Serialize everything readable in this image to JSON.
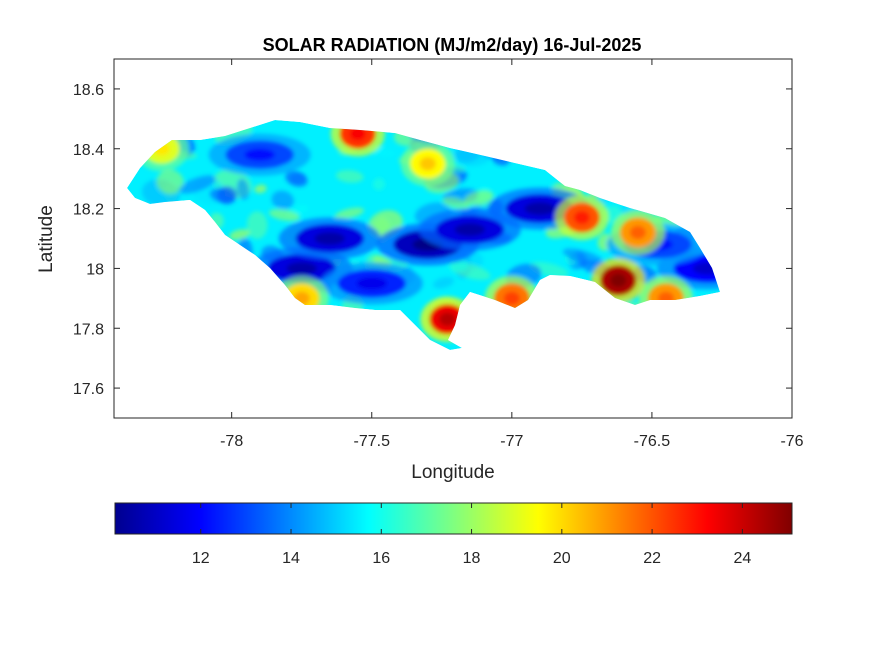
{
  "chart_data": {
    "type": "heatmap",
    "title": "SOLAR RADIATION (MJ/m2/day) 16-Jul-2025",
    "xlabel": "Longitude",
    "ylabel": "Latitude",
    "xlim": [
      -78.42,
      -76.0
    ],
    "ylim": [
      17.5,
      18.7
    ],
    "xticks": [
      -78,
      -77.5,
      -77,
      -76.5,
      -76
    ],
    "yticks": [
      17.6,
      17.8,
      18,
      18.2,
      18.4,
      18.6
    ],
    "grid": false,
    "colormap": "jet",
    "colorbar": {
      "orientation": "horizontal",
      "placement": "bottom",
      "range": [
        10.1,
        25.1
      ],
      "ticks": [
        12,
        14,
        16,
        18,
        20,
        22,
        24
      ],
      "colors": [
        "#00008f",
        "#0000ff",
        "#00ffff",
        "#ffff00",
        "#ff0000",
        "#800000"
      ]
    },
    "hotspots": [
      {
        "lon": -77.23,
        "lat": 17.83,
        "value": 23.5
      },
      {
        "lon": -76.62,
        "lat": 17.96,
        "value": 24.5
      },
      {
        "lon": -76.75,
        "lat": 18.17,
        "value": 22.0
      },
      {
        "lon": -77.55,
        "lat": 18.45,
        "value": 22.5
      },
      {
        "lon": -77.0,
        "lat": 17.9,
        "value": 21.5
      },
      {
        "lon": -76.45,
        "lat": 17.9,
        "value": 21.0
      },
      {
        "lon": -78.25,
        "lat": 18.4,
        "value": 19.0
      },
      {
        "lon": -77.3,
        "lat": 18.35,
        "value": 19.5
      },
      {
        "lon": -76.55,
        "lat": 18.12,
        "value": 21.0
      },
      {
        "lon": -77.75,
        "lat": 17.9,
        "value": 20.0
      }
    ],
    "coldspots": [
      {
        "lon": -77.3,
        "lat": 18.08,
        "value": 11.0
      },
      {
        "lon": -76.9,
        "lat": 18.2,
        "value": 11.5
      },
      {
        "lon": -77.75,
        "lat": 18.0,
        "value": 11.5
      },
      {
        "lon": -77.65,
        "lat": 18.1,
        "value": 11.5
      },
      {
        "lon": -77.15,
        "lat": 18.13,
        "value": 11.5
      },
      {
        "lon": -76.3,
        "lat": 18.0,
        "value": 12.0
      },
      {
        "lon": -77.5,
        "lat": 17.95,
        "value": 12.5
      },
      {
        "lon": -77.9,
        "lat": 18.38,
        "value": 13.0
      },
      {
        "lon": -76.48,
        "lat": 18.08,
        "value": 13.0
      }
    ]
  }
}
